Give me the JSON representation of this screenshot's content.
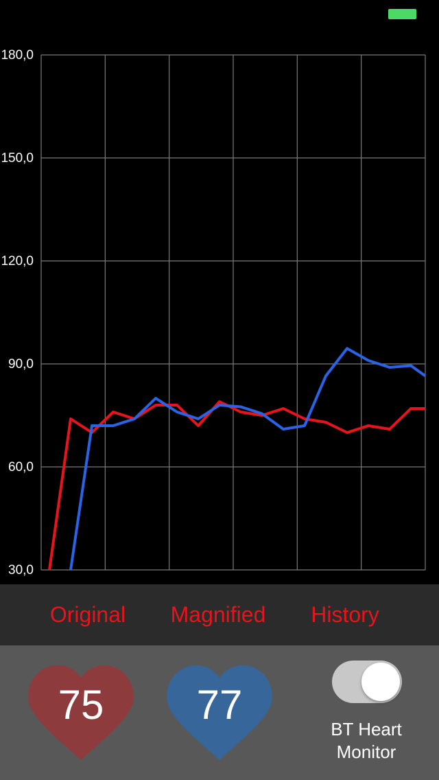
{
  "status_bar": {
    "battery_color": "#4cd964"
  },
  "chart_data": {
    "type": "line",
    "title": "",
    "xlabel": "",
    "ylabel": "",
    "ylim": [
      30,
      180
    ],
    "yticks": [
      30,
      60,
      90,
      120,
      150,
      180
    ],
    "ytick_labels": [
      "30,0",
      "60,0",
      "90,0",
      "120,0",
      "150,0",
      "180,0"
    ],
    "x_divisions": 6,
    "grid": true,
    "series": [
      {
        "color": "#e8141c",
        "values": [
          30,
          74,
          70,
          76,
          74,
          78,
          78,
          72,
          79,
          76,
          75,
          77,
          74,
          73,
          70,
          72,
          71,
          77,
          77
        ]
      },
      {
        "color": "#2a64e6",
        "values": [
          30,
          72,
          72,
          74,
          80,
          76,
          74,
          78,
          77.5,
          75.5,
          71,
          72,
          86.5,
          94.5,
          91,
          89,
          89.5,
          86.5
        ]
      }
    ]
  },
  "tabs": [
    {
      "label": "Original",
      "color": "#e8141c"
    },
    {
      "label": "Magnified",
      "color": "#e8141c"
    },
    {
      "label": "History",
      "color": "#e8141c"
    }
  ],
  "bottom": {
    "original_bpm": "75",
    "original_heart_color": "#8e3b3d",
    "magnified_bpm": "77",
    "magnified_heart_color": "#36669a",
    "toggle_on": true,
    "toggle_label": "BT Heart Monitor"
  }
}
